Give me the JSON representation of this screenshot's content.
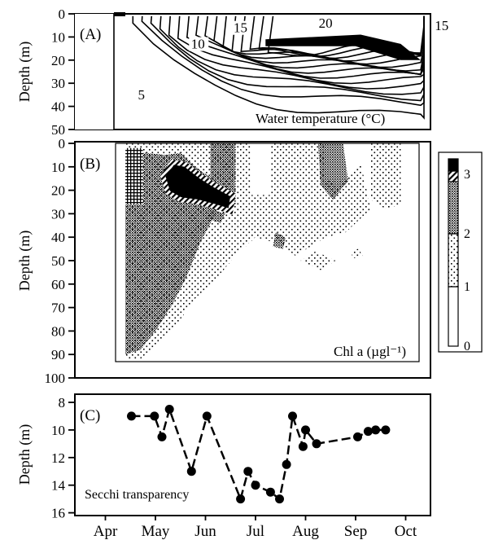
{
  "chart_data": [
    {
      "panel": "A",
      "type": "heatmap",
      "panel_label": "(A)",
      "ylabel": "Depth (m)",
      "ylim": [
        0,
        50
      ],
      "y_ticks": [
        "0",
        "10",
        "20",
        "30",
        "40",
        "50"
      ],
      "annotation": "Water temperature (°C)",
      "contour_labels": [
        {
          "text": "5",
          "month": 4.72,
          "depth": 37
        },
        {
          "text": "10",
          "month": 5.85,
          "depth": 15
        },
        {
          "text": "15",
          "month": 6.7,
          "depth": 8
        },
        {
          "text": "20",
          "month": 8.4,
          "depth": 6
        },
        {
          "text": "15",
          "month": 10.72,
          "depth": 7
        }
      ],
      "isotherm_degC": [
        5,
        6,
        7,
        8,
        9,
        10,
        11,
        12,
        13,
        14,
        15,
        16,
        17,
        18,
        19,
        20
      ]
    },
    {
      "panel": "B",
      "type": "heatmap",
      "panel_label": "(B)",
      "ylabel": "Depth (m)",
      "ylim": [
        0,
        100
      ],
      "y_ticks": [
        "0",
        "10",
        "20",
        "30",
        "40",
        "50",
        "60",
        "70",
        "80",
        "90",
        "100"
      ],
      "annotation": "Chl a (µgl⁻¹)",
      "legend": {
        "ticks": [
          "0",
          "1",
          "2",
          "3"
        ],
        "position": "right"
      },
      "regions": [
        {
          "level": "1-2",
          "points": [
            [
              4.4,
              0
            ],
            [
              6.9,
              0
            ],
            [
              6.9,
              22
            ],
            [
              7.3,
              22
            ],
            [
              7.3,
              0
            ],
            [
              8.4,
              0
            ],
            [
              8.4,
              16
            ],
            [
              8.8,
              16
            ],
            [
              9.1,
              8
            ],
            [
              9.3,
              28
            ],
            [
              8.8,
              38
            ],
            [
              8.4,
              40
            ],
            [
              7.8,
              48
            ],
            [
              7.5,
              43
            ],
            [
              7.0,
              40
            ],
            [
              6.6,
              48
            ],
            [
              6.2,
              58
            ],
            [
              5.8,
              66
            ],
            [
              5.4,
              78
            ],
            [
              5.0,
              86
            ],
            [
              4.7,
              92
            ],
            [
              4.4,
              92
            ]
          ]
        },
        {
          "level": "1-2",
          "points": [
            [
              7.9,
              50
            ],
            [
              8.2,
              46
            ],
            [
              8.6,
              50
            ],
            [
              8.3,
              54
            ]
          ]
        },
        {
          "level": "1-2",
          "points": [
            [
              8.9,
              46
            ],
            [
              9.05,
              45
            ],
            [
              9.15,
              48
            ],
            [
              8.95,
              49
            ]
          ]
        },
        {
          "level": "1-2",
          "points": [
            [
              9.3,
              0
            ],
            [
              9.9,
              0
            ],
            [
              9.9,
              26
            ],
            [
              9.6,
              28
            ],
            [
              9.3,
              24
            ]
          ]
        },
        {
          "level": "2-3",
          "points": [
            [
              4.4,
              5
            ],
            [
              4.8,
              4
            ],
            [
              5.2,
              5
            ],
            [
              5.5,
              4
            ],
            [
              5.8,
              10
            ],
            [
              6.2,
              16
            ],
            [
              6.4,
              22
            ],
            [
              6.2,
              30
            ],
            [
              5.9,
              42
            ],
            [
              5.6,
              58
            ],
            [
              5.3,
              70
            ],
            [
              5.0,
              80
            ],
            [
              4.7,
              88
            ],
            [
              4.4,
              90
            ]
          ]
        },
        {
          "level": "2-3",
          "points": [
            [
              6.1,
              0
            ],
            [
              6.6,
              0
            ],
            [
              6.6,
              26
            ],
            [
              6.3,
              28
            ],
            [
              6.1,
              20
            ]
          ]
        },
        {
          "level": "2-3",
          "points": [
            [
              8.25,
              0
            ],
            [
              8.75,
              0
            ],
            [
              8.85,
              16
            ],
            [
              8.55,
              24
            ],
            [
              8.3,
              18
            ]
          ]
        },
        {
          "level": "2-3",
          "points": [
            [
              7.4,
              38
            ],
            [
              7.6,
              40
            ],
            [
              7.55,
              45
            ],
            [
              7.35,
              44
            ]
          ]
        },
        {
          "level": "2-3",
          "points": [
            [
              6.1,
              28
            ],
            [
              6.4,
              30
            ],
            [
              6.3,
              34
            ],
            [
              6.05,
              32
            ]
          ]
        },
        {
          "level": "3+",
          "points": [
            [
              5.15,
              14
            ],
            [
              5.35,
              8
            ],
            [
              5.6,
              9
            ],
            [
              5.9,
              14
            ],
            [
              6.2,
              18
            ],
            [
              6.55,
              22
            ],
            [
              6.5,
              29
            ],
            [
              6.2,
              27
            ],
            [
              5.85,
              25
            ],
            [
              5.5,
              24
            ],
            [
              5.25,
              21
            ]
          ]
        }
      ]
    },
    {
      "panel": "C",
      "type": "line",
      "panel_label": "(C)",
      "ylabel": "Depth (m)",
      "ylim": [
        16,
        8
      ],
      "y_ticks": [
        "8",
        "10",
        "12",
        "14",
        "16"
      ],
      "annotation": "Secchi transparency",
      "categories": [
        "Apr",
        "May",
        "Jun",
        "Jul",
        "Aug",
        "Sep",
        "Oct"
      ],
      "x": [
        4.52,
        4.98,
        5.13,
        5.28,
        5.72,
        6.03,
        6.7,
        6.85,
        7.0,
        7.3,
        7.48,
        7.62,
        7.74,
        7.95,
        8.0,
        8.22,
        9.04,
        9.25,
        9.4,
        9.6
      ],
      "y": [
        9.0,
        9.0,
        10.5,
        8.5,
        13.0,
        9.0,
        15.0,
        13.0,
        14.0,
        14.5,
        15.0,
        12.5,
        9.0,
        11.2,
        10.0,
        11.0,
        10.5,
        10.1,
        10.0,
        10.0
      ]
    }
  ]
}
